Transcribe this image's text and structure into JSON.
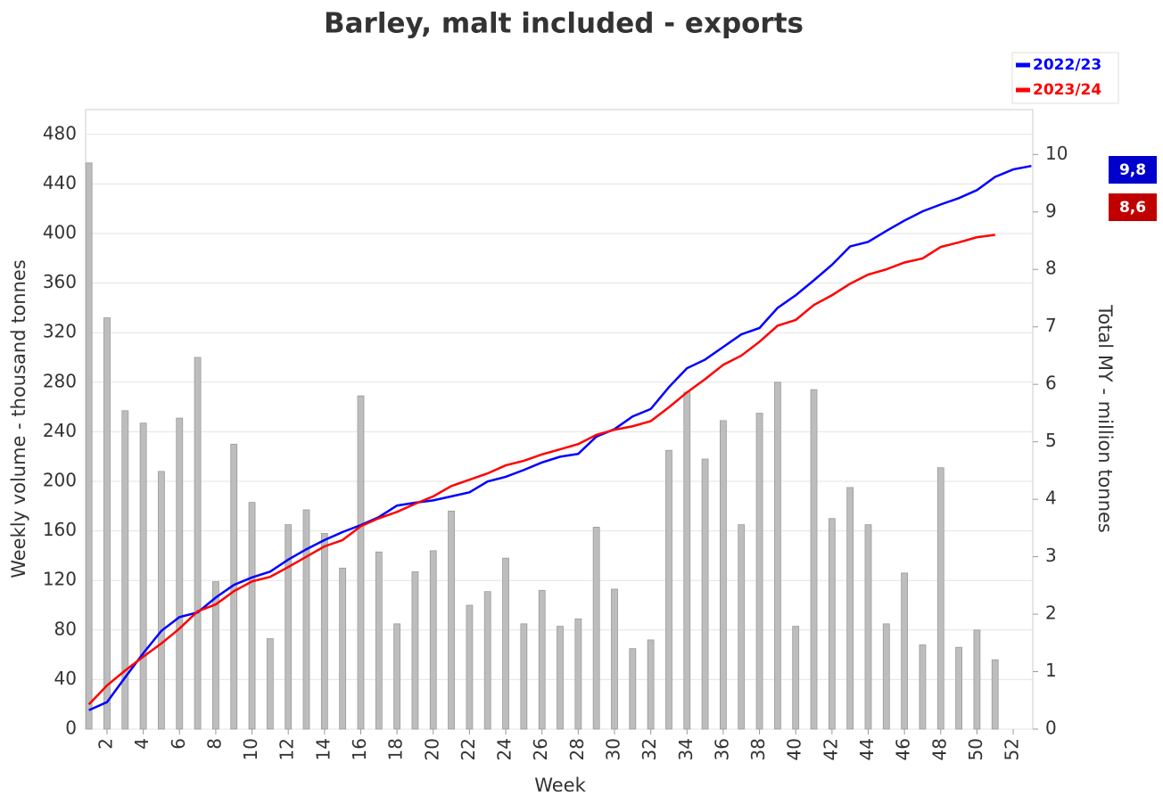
{
  "chart_data": {
    "type": "bar",
    "title": "Barley, malt included - exports",
    "x_label": "Week",
    "y_label": "Weekly volume - thousand tonnes",
    "y2_label": "Total MY - million tonnes",
    "x": [
      1,
      2,
      3,
      4,
      5,
      6,
      7,
      8,
      9,
      10,
      11,
      12,
      13,
      14,
      15,
      16,
      17,
      18,
      19,
      20,
      21,
      22,
      23,
      24,
      25,
      26,
      27,
      28,
      29,
      30,
      31,
      32,
      33,
      34,
      35,
      36,
      37,
      38,
      39,
      40,
      41,
      42,
      43,
      44,
      45,
      46,
      47,
      48,
      49,
      50,
      51,
      52,
      53
    ],
    "xlim": [
      0.82,
      53.08
    ],
    "xticks": [
      2,
      4,
      6,
      8,
      10,
      12,
      14,
      16,
      18,
      20,
      22,
      24,
      26,
      28,
      30,
      32,
      34,
      36,
      38,
      40,
      42,
      44,
      46,
      48,
      50,
      52
    ],
    "ylim": [
      0,
      500
    ],
    "yticks": [
      0,
      40,
      80,
      120,
      160,
      200,
      240,
      280,
      320,
      360,
      400,
      440,
      480
    ],
    "y2lim": [
      0,
      10.78
    ],
    "y2ticks": [
      0,
      1,
      2,
      3,
      4,
      5,
      6,
      7,
      8,
      9,
      10
    ],
    "grid": true,
    "legend": "top-right",
    "series": [
      {
        "type": "bar",
        "color": "#bdbdbd",
        "values": [
          457,
          332,
          257,
          247,
          208,
          251,
          300,
          119,
          230,
          183,
          73,
          165,
          177,
          158,
          130,
          269,
          143,
          85,
          127,
          144,
          176,
          100,
          111,
          138,
          85,
          112,
          83,
          89,
          163,
          113,
          65,
          72,
          225,
          272,
          218,
          249,
          165,
          255,
          280,
          83,
          274,
          170,
          195,
          165,
          85,
          126,
          68,
          211,
          66,
          80,
          56,
          null,
          null
        ]
      },
      {
        "type": "line",
        "name": "2022/23",
        "color": "#0000ff",
        "axis": "y2",
        "values": [
          0.33,
          0.47,
          0.9,
          1.32,
          1.71,
          1.95,
          2.03,
          2.29,
          2.51,
          2.64,
          2.74,
          2.95,
          3.13,
          3.29,
          3.43,
          3.55,
          3.69,
          3.89,
          3.94,
          3.98,
          4.05,
          4.12,
          4.31,
          4.39,
          4.51,
          4.64,
          4.74,
          4.79,
          5.09,
          5.22,
          5.44,
          5.57,
          5.95,
          6.28,
          6.43,
          6.65,
          6.87,
          6.98,
          7.33,
          7.55,
          7.81,
          8.08,
          8.4,
          8.48,
          8.67,
          8.85,
          9.01,
          9.13,
          9.24,
          9.38,
          9.61,
          9.74,
          9.8
        ],
        "value_labels": [
          null,
          null,
          null,
          null,
          null,
          null,
          null,
          null,
          null,
          null,
          null,
          null,
          null,
          null,
          null,
          null,
          null,
          null,
          null,
          null,
          null,
          null,
          null,
          null,
          null,
          null,
          null,
          null,
          null,
          null,
          null,
          null,
          null,
          null,
          null,
          null,
          null,
          null,
          null,
          null,
          null,
          null,
          null,
          null,
          null,
          null,
          null,
          null,
          null,
          null,
          null,
          null,
          "9,8"
        ]
      },
      {
        "type": "line",
        "name": "2023/24",
        "color": "#ff0000",
        "axis": "y2",
        "values": [
          0.43,
          0.76,
          1.02,
          1.26,
          1.49,
          1.75,
          2.05,
          2.17,
          2.4,
          2.57,
          2.65,
          2.82,
          3.0,
          3.18,
          3.29,
          3.53,
          3.67,
          3.78,
          3.92,
          4.05,
          4.23,
          4.34,
          4.45,
          4.59,
          4.67,
          4.78,
          4.87,
          4.96,
          5.12,
          5.21,
          5.27,
          5.36,
          5.6,
          5.86,
          6.09,
          6.34,
          6.5,
          6.74,
          7.02,
          7.12,
          7.38,
          7.55,
          7.75,
          7.91,
          8.0,
          8.12,
          8.19,
          8.39,
          8.47,
          8.56,
          8.6,
          null,
          null
        ],
        "value_labels": [
          null,
          null,
          null,
          null,
          null,
          null,
          null,
          null,
          null,
          null,
          null,
          null,
          null,
          null,
          null,
          null,
          null,
          null,
          null,
          null,
          null,
          null,
          null,
          null,
          null,
          null,
          null,
          null,
          null,
          null,
          null,
          null,
          null,
          null,
          null,
          null,
          null,
          null,
          null,
          null,
          null,
          null,
          null,
          null,
          null,
          null,
          null,
          null,
          null,
          null,
          "8,6",
          null,
          null
        ]
      }
    ]
  }
}
